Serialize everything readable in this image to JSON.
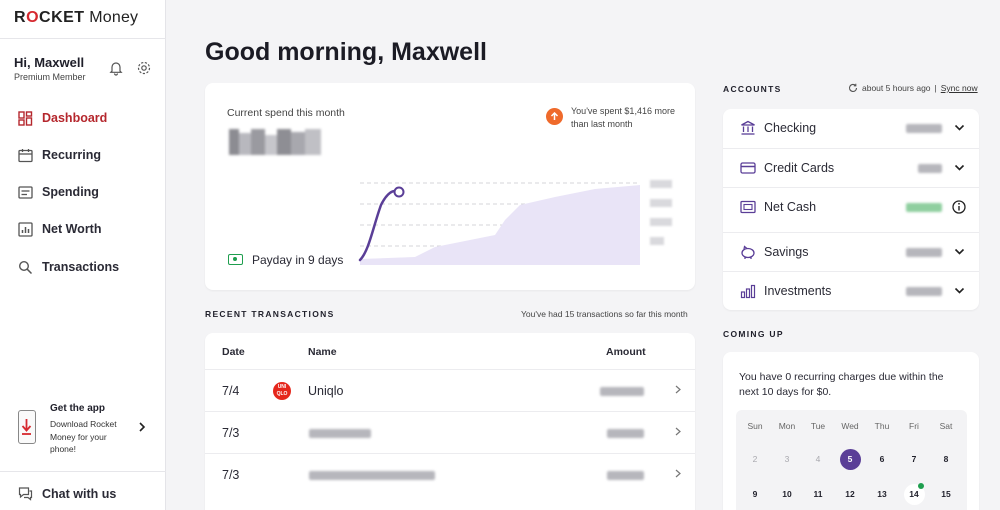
{
  "brand": {
    "logo_bold": "ROCKET",
    "logo_light": "Money"
  },
  "user": {
    "greeting": "Hi, Maxwell",
    "tier": "Premium Member"
  },
  "nav": [
    {
      "label": "Dashboard",
      "icon": "dashboard-icon",
      "active": true
    },
    {
      "label": "Recurring",
      "icon": "calendar-icon",
      "active": false
    },
    {
      "label": "Spending",
      "icon": "spending-icon",
      "active": false
    },
    {
      "label": "Net Worth",
      "icon": "bar-chart-icon",
      "active": false
    },
    {
      "label": "Transactions",
      "icon": "search-icon",
      "active": false
    }
  ],
  "app_promo": {
    "title": "Get the app",
    "description": "Download Rocket Money for your phone!"
  },
  "chat": {
    "label": "Chat with us"
  },
  "page": {
    "title": "Good morning, Maxwell"
  },
  "spend": {
    "label": "Current spend this month",
    "note": "You've spent $1,416 more than last month",
    "payday": "Payday in 9 days",
    "line_color": "#5a3e97",
    "area_color": "#e9e4f7"
  },
  "recent": {
    "title": "RECENT TRANSACTIONS",
    "count_text": "You've had 15 transactions so far this month",
    "headers": {
      "date": "Date",
      "name": "Name",
      "amount": "Amount"
    },
    "rows": [
      {
        "date": "7/4",
        "name": "Uniqlo",
        "logo_text": "UNI QLO"
      },
      {
        "date": "7/3",
        "name": ""
      },
      {
        "date": "7/3",
        "name": ""
      }
    ]
  },
  "accounts": {
    "title": "ACCOUNTS",
    "sync_status": "about 5 hours ago",
    "sync_link": "Sync now",
    "items": [
      {
        "label": "Checking",
        "icon": "bank-icon"
      },
      {
        "label": "Credit Cards",
        "icon": "credit-card-icon"
      },
      {
        "label": "Net Cash",
        "icon": "cash-icon"
      },
      {
        "label": "Savings",
        "icon": "piggy-bank-icon"
      },
      {
        "label": "Investments",
        "icon": "investments-icon"
      }
    ]
  },
  "coming_up": {
    "title": "COMING UP",
    "text": "You have 0 recurring charges due within the next 10 days for $0.",
    "weekdays": [
      "Sun",
      "Mon",
      "Tue",
      "Wed",
      "Thu",
      "Fri",
      "Sat"
    ],
    "week1": [
      "2",
      "3",
      "4",
      "5",
      "6",
      "7",
      "8"
    ],
    "week2": [
      "9",
      "10",
      "11",
      "12",
      "13",
      "14",
      "15"
    ],
    "today": "5"
  },
  "colors": {
    "accent_red": "#b5272d",
    "brand_red": "#d6292f",
    "purple": "#5a3e97",
    "green": "#1e9e4e",
    "orange": "#ef6a2b"
  }
}
